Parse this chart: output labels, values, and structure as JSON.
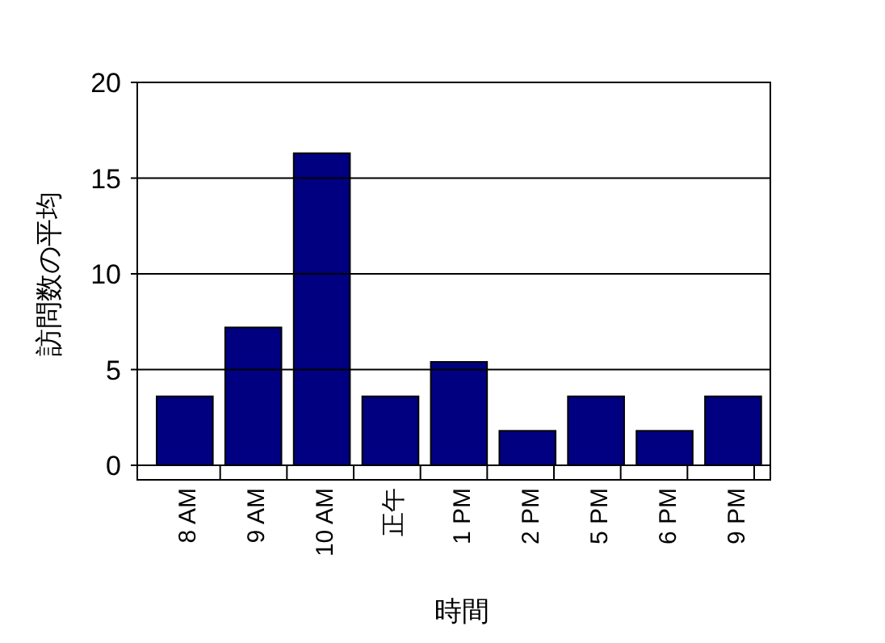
{
  "chart_data": {
    "type": "bar",
    "xlabel": "時間",
    "ylabel": "訪問数の平均",
    "categories": [
      "8 AM",
      "9 AM",
      "10 AM",
      "正午",
      "1 PM",
      "2 PM",
      "5 PM",
      "6 PM",
      "9 PM"
    ],
    "values": [
      3.6,
      7.2,
      16.3,
      3.6,
      5.4,
      1.8,
      3.6,
      1.8,
      3.6
    ],
    "color": "#000080",
    "ylim": [
      0,
      20
    ],
    "yticks": [
      0,
      5,
      10,
      15,
      20
    ],
    "grid": "y"
  }
}
